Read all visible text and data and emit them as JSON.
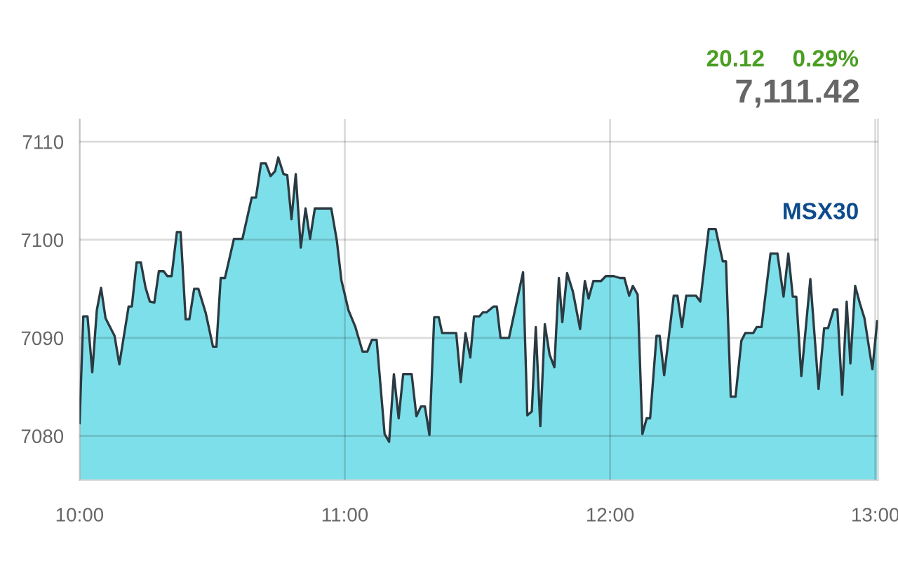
{
  "chart_data": {
    "type": "area",
    "annotations": [
      "20.12",
      "0.29%",
      "7,111.42"
    ],
    "x": [
      10.0,
      10.014,
      10.03,
      10.048,
      10.065,
      10.081,
      10.098,
      10.132,
      10.15,
      10.185,
      10.197,
      10.215,
      10.231,
      10.249,
      10.265,
      10.282,
      10.299,
      10.317,
      10.331,
      10.347,
      10.367,
      10.381,
      10.4,
      10.414,
      10.432,
      10.448,
      10.476,
      10.503,
      10.516,
      10.532,
      10.548,
      10.582,
      10.614,
      10.649,
      10.665,
      10.684,
      10.702,
      10.72,
      10.737,
      10.749,
      10.769,
      10.783,
      10.799,
      10.815,
      10.834,
      10.852,
      10.869,
      10.887,
      10.949,
      10.97,
      10.987,
      11.014,
      11.04,
      11.067,
      11.085,
      11.102,
      11.12,
      11.15,
      11.167,
      11.185,
      11.203,
      11.22,
      11.252,
      11.27,
      11.287,
      11.302,
      11.319,
      11.337,
      11.354,
      11.367,
      11.42,
      11.437,
      11.455,
      11.473,
      11.487,
      11.508,
      11.52,
      11.534,
      11.561,
      11.573,
      11.587,
      11.619,
      11.672,
      11.688,
      11.705,
      11.72,
      11.737,
      11.754,
      11.772,
      11.79,
      11.807,
      11.82,
      11.838,
      11.86,
      11.887,
      11.905,
      11.919,
      11.937,
      11.966,
      11.984,
      12.014,
      12.037,
      12.054,
      12.072,
      12.086,
      12.104,
      12.122,
      12.138,
      12.151,
      12.175,
      12.187,
      12.204,
      12.24,
      12.254,
      12.271,
      12.287,
      12.324,
      12.34,
      12.372,
      12.398,
      12.425,
      12.437,
      12.455,
      12.473,
      12.495,
      12.51,
      12.54,
      12.553,
      12.571,
      12.605,
      12.631,
      12.654,
      12.672,
      12.689,
      12.702,
      12.721,
      12.755,
      12.786,
      12.807,
      12.822,
      12.843,
      12.857,
      12.875,
      12.892,
      12.906,
      12.924,
      12.942,
      12.959,
      12.989,
      13.007
    ],
    "series": [
      {
        "name": "MSX30",
        "color": "#7ddfe9",
        "values": [
          7081.3,
          7092.2,
          7092.2,
          7086.5,
          7092.8,
          7095.1,
          7092.0,
          7090.2,
          7087.3,
          7093.2,
          7093.2,
          7097.7,
          7097.7,
          7095.1,
          7093.7,
          7093.6,
          7096.8,
          7096.8,
          7096.3,
          7096.3,
          7100.8,
          7100.8,
          7091.9,
          7091.9,
          7095.0,
          7095.0,
          7092.5,
          7089.1,
          7089.1,
          7096.1,
          7096.1,
          7100.1,
          7100.1,
          7104.3,
          7104.3,
          7107.8,
          7107.8,
          7106.5,
          7107.0,
          7108.4,
          7106.7,
          7106.6,
          7102.1,
          7106.7,
          7099.2,
          7103.2,
          7100.1,
          7103.2,
          7103.2,
          7099.9,
          7095.9,
          7092.8,
          7091.1,
          7088.6,
          7088.6,
          7089.8,
          7089.8,
          7080.2,
          7079.4,
          7086.3,
          7081.8,
          7086.3,
          7086.3,
          7082.0,
          7083.0,
          7083.0,
          7080.1,
          7092.1,
          7092.1,
          7090.5,
          7090.5,
          7085.5,
          7090.5,
          7088.0,
          7092.2,
          7092.2,
          7092.6,
          7092.6,
          7093.2,
          7093.2,
          7090.0,
          7090.0,
          7096.7,
          7082.1,
          7082.5,
          7091.1,
          7081.0,
          7091.4,
          7088.3,
          7087.0,
          7096.1,
          7091.6,
          7096.6,
          7094.7,
          7090.9,
          7095.8,
          7094.0,
          7095.8,
          7095.8,
          7096.3,
          7096.3,
          7096.1,
          7096.1,
          7094.3,
          7095.3,
          7094.4,
          7080.2,
          7081.8,
          7081.8,
          7090.2,
          7090.2,
          7086.2,
          7094.3,
          7094.3,
          7091.1,
          7094.3,
          7094.3,
          7093.7,
          7101.1,
          7101.1,
          7097.8,
          7097.8,
          7084.0,
          7084.0,
          7089.7,
          7090.5,
          7090.5,
          7091.1,
          7091.1,
          7098.6,
          7098.6,
          7094.2,
          7098.6,
          7094.2,
          7094.2,
          7086.1,
          7096.0,
          7084.8,
          7091.0,
          7091.0,
          7092.9,
          7092.9,
          7084.2,
          7093.7,
          7087.4,
          7095.3,
          7093.5,
          7092.0,
          7086.8,
          7091.7
        ]
      }
    ],
    "xlim": [
      10,
      13.01
    ],
    "ylim": [
      7075.5,
      7112.3
    ],
    "xticks": [
      {
        "value": 10,
        "label": "10:00"
      },
      {
        "value": 11,
        "label": "11:00"
      },
      {
        "value": 12,
        "label": "12:00"
      },
      {
        "value": 13,
        "label": "13:00"
      }
    ],
    "yticks": [
      7080,
      7090,
      7100,
      7110
    ],
    "grid": true
  }
}
